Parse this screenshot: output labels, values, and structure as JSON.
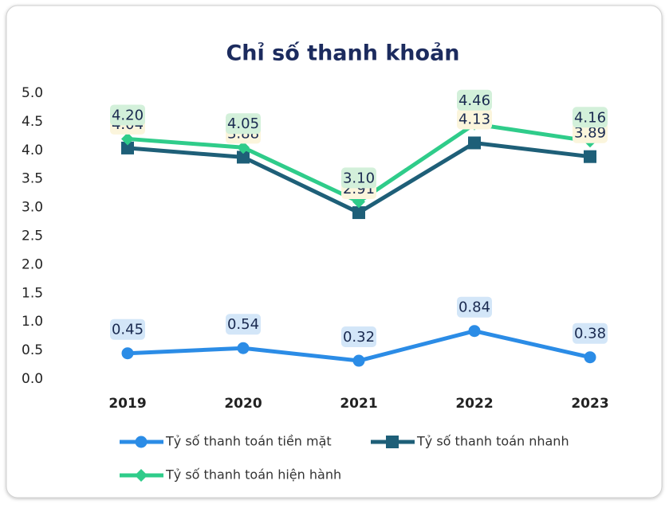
{
  "chart_data": {
    "type": "line",
    "title": "Chỉ số thanh khoản",
    "categories": [
      "2019",
      "2020",
      "2021",
      "2022",
      "2023"
    ],
    "series": [
      {
        "name": "Tỷ số thanh toán tiền mặt",
        "color": "#2b8ce6",
        "marker": "circle",
        "label_color": "#d3e6f8",
        "values": [
          0.45,
          0.54,
          0.32,
          0.84,
          0.38
        ]
      },
      {
        "name": "Tỷ số thanh toán nhanh",
        "color": "#1e5f78",
        "marker": "square",
        "label_color": "#fbf5dc",
        "values": [
          4.04,
          3.88,
          2.91,
          4.13,
          3.89
        ]
      },
      {
        "name": "Tỷ số thanh toán hiện hành",
        "color": "#2fcc8a",
        "marker": "diamond",
        "label_color": "#d3f0da",
        "values": [
          4.2,
          4.05,
          3.1,
          4.46,
          4.16
        ],
        "value_labels": [
          "4.20",
          "4.05",
          "3.10",
          "4.46",
          "4.16"
        ]
      }
    ],
    "ylim": [
      0,
      5
    ],
    "yticks": [
      {
        "value": 0,
        "label": "0.0"
      },
      0.5,
      {
        "value": 1,
        "label": "1.0"
      },
      1.5,
      {
        "value": 2,
        "label": "2.0"
      },
      2.5,
      {
        "value": 3,
        "label": "3.0"
      },
      3.5,
      {
        "value": 4,
        "label": "4.0"
      },
      4.5,
      {
        "value": 5,
        "label": "5.0"
      }
    ],
    "grid": false,
    "legend": "bottom"
  }
}
